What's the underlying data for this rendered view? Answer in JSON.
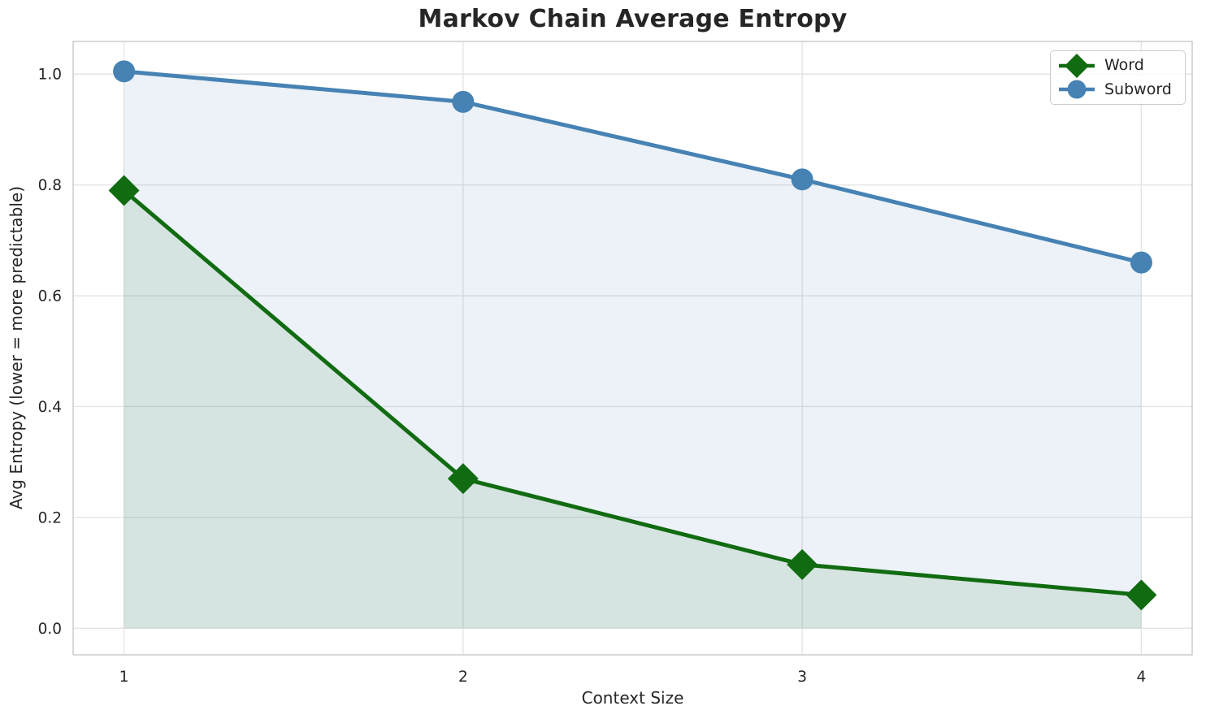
{
  "chart_data": {
    "type": "line",
    "title": "Markov Chain Average Entropy",
    "xlabel": "Context Size",
    "ylabel": "Avg Entropy (lower = more predictable)",
    "x": [
      1,
      2,
      3,
      4
    ],
    "xtick_labels": [
      "1",
      "2",
      "3",
      "4"
    ],
    "ytick_values": [
      0.0,
      0.2,
      0.4,
      0.6,
      0.8,
      1.0
    ],
    "ytick_labels": [
      "0.0",
      "0.2",
      "0.4",
      "0.6",
      "0.8",
      "1.0"
    ],
    "xlim": [
      0.85,
      4.15
    ],
    "ylim": [
      -0.048,
      1.059
    ],
    "grid": true,
    "legend_position": "upper right",
    "series": [
      {
        "name": "Word",
        "marker": "diamond",
        "color": "#116b11",
        "fill_alpha": 0.1,
        "values": [
          0.79,
          0.27,
          0.115,
          0.06
        ]
      },
      {
        "name": "Subword",
        "marker": "circle",
        "color": "#4682b4",
        "fill_alpha": 0.1,
        "values": [
          1.005,
          0.95,
          0.81,
          0.66
        ]
      }
    ],
    "style": {
      "grid_color": "#e4e4e4",
      "spine_color": "#cccccc",
      "text_color": "#262626",
      "plot_bg": "#ffffff"
    }
  }
}
